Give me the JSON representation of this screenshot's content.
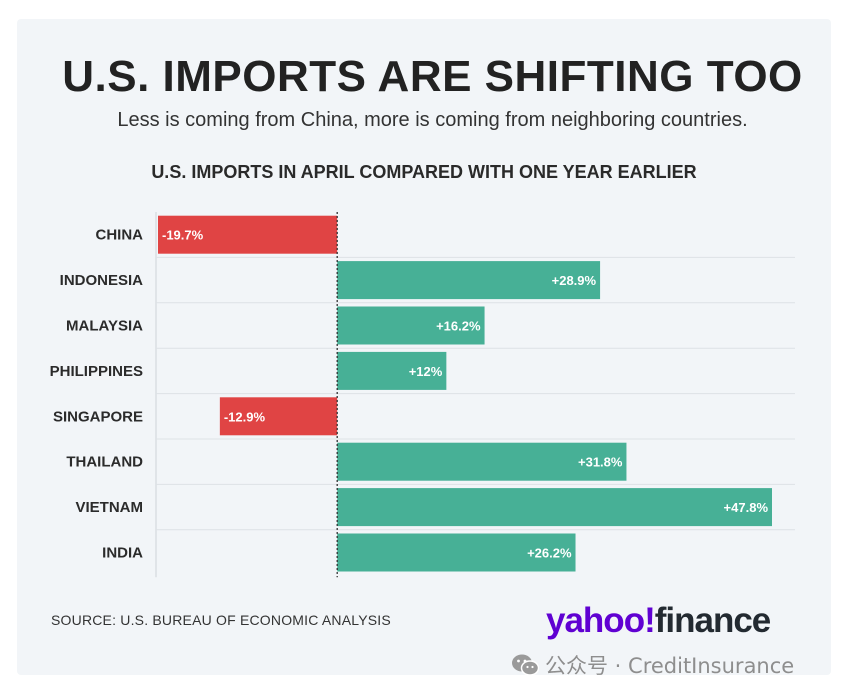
{
  "header": {
    "title": "U.S. IMPORTS ARE SHIFTING TOO",
    "subtitle": "Less is coming from China, more is coming from neighboring countries."
  },
  "footer": {
    "source": "SOURCE: U.S. BUREAU OF ECONOMIC ANALYSIS",
    "logo_text": "yahoo!finance",
    "watermark": "公众号 · CreditInsurance"
  },
  "colors": {
    "negative": "#e04444",
    "positive": "#47b096",
    "logo_purple": "#6001d2",
    "logo_dark": "#232a31"
  },
  "icons": {
    "watermark_icon": "wechat-icon"
  },
  "chart_data": {
    "type": "bar",
    "orientation": "horizontal",
    "title": "U.S. IMPORTS IN APRIL COMPARED WITH ONE YEAR EARLIER",
    "categories": [
      "CHINA",
      "INDONESIA",
      "MALAYSIA",
      "PHILIPPINES",
      "SINGAPORE",
      "THAILAND",
      "VIETNAM",
      "INDIA"
    ],
    "values": [
      -19.7,
      28.9,
      16.2,
      12,
      -12.9,
      31.8,
      47.8,
      26.2
    ],
    "data_labels": [
      "-19.7%",
      "+28.9%",
      "+16.2%",
      "+12%",
      "-12.9%",
      "+31.8%",
      "+47.8%",
      "+26.2%"
    ],
    "unit": "%",
    "xlim": [
      -19.7,
      47.8
    ],
    "grid": true
  }
}
